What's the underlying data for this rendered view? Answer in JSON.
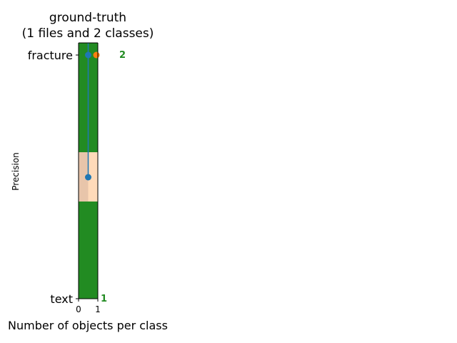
{
  "chart_data": {
    "type": "bar",
    "orientation": "horizontal",
    "title_line1": "ground-truth",
    "title_line2": "(1 files and 2 classes)",
    "xlabel": "Number of objects per class",
    "ylabel": "Precision",
    "categories": [
      "text",
      "fracture"
    ],
    "values": [
      1,
      2
    ],
    "value_labels": [
      "1",
      "2"
    ],
    "xlim": [
      0,
      1
    ],
    "xticks": [
      "0",
      "1"
    ],
    "bar_color": "#228B22",
    "value_label_color": "#228B22",
    "overlay": {
      "line_color": "#1f77b4",
      "marker_color": "#ff7f0e",
      "fill_color": "#ffdab9",
      "points": [
        {
          "x": 0.5,
          "y": 0.5
        },
        {
          "x": 0.5,
          "y": 1.0
        }
      ],
      "end_marker": {
        "x": 1.0,
        "y": 1.0
      }
    }
  }
}
